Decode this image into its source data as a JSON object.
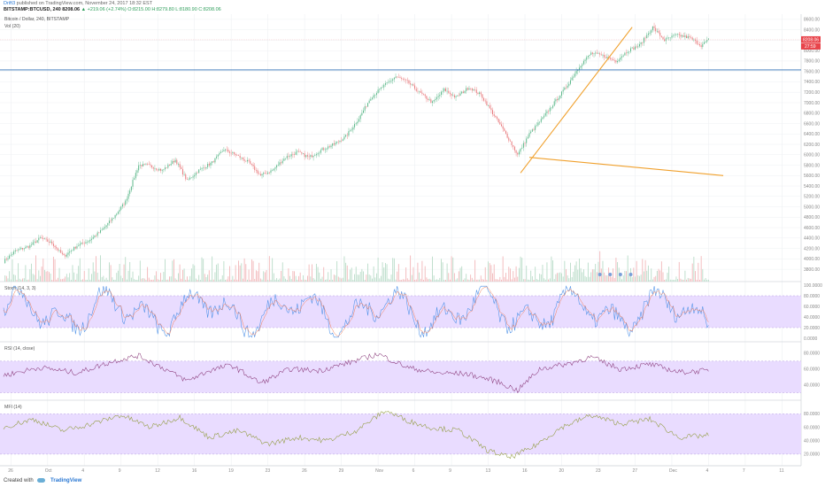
{
  "header": {
    "author": "Drift3",
    "published": "published on TradingView.com, November 24, 2017 18:32 EST",
    "symbol": "BITSTAMP:BTCUSD, 240",
    "last": "8208.06",
    "change": "▲ +219.06 (+2.74%)",
    "ohlc": "O:8215.00 H:8279.80 L:8180.90 C:8208.06"
  },
  "footer": {
    "created_with": "Created with",
    "brand": "TradingView"
  },
  "colors": {
    "up": "#5cb88a",
    "down": "#e8787b",
    "vol_up": "#b9dcc8",
    "vol_down": "#f2b7b9",
    "hline": "#2f6fb5",
    "trend_orange": "#f0a02c",
    "trend_blue": "#3d6fd1",
    "band": "#e9dcff",
    "grid": "#eef0f3",
    "axis_text": "#888888"
  },
  "chart_data": [
    {
      "type": "candlestick",
      "title": "Bitcoin / Dollar, 240, BITSTAMP",
      "subtitle": "Vol (20)",
      "y_tick_labels": [
        "8600.00",
        "8400.00",
        "8200.00",
        "8000.00",
        "7800.00",
        "7600.00",
        "7400.00",
        "7200.00",
        "7000.00",
        "6800.00",
        "6600.00",
        "6400.00",
        "6200.00",
        "6000.00",
        "5800.00",
        "5600.00",
        "5400.00",
        "5200.00",
        "5000.00",
        "4800.00",
        "4600.00",
        "4400.00",
        "4200.00",
        "4000.00",
        "3800.00"
      ],
      "ylim": [
        3700,
        8700
      ],
      "last_price_label": "8208.06",
      "countdown_label": "27:59",
      "horizontal_line": 7630,
      "close_anchors": [
        {
          "x": 0,
          "y": 3950
        },
        {
          "x": 8,
          "y": 4150
        },
        {
          "x": 18,
          "y": 4250
        },
        {
          "x": 25,
          "y": 4400
        },
        {
          "x": 33,
          "y": 4300
        },
        {
          "x": 41,
          "y": 4050
        },
        {
          "x": 50,
          "y": 4250
        },
        {
          "x": 58,
          "y": 4350
        },
        {
          "x": 67,
          "y": 4550
        },
        {
          "x": 75,
          "y": 4800
        },
        {
          "x": 83,
          "y": 5100
        },
        {
          "x": 92,
          "y": 5800
        },
        {
          "x": 98,
          "y": 5800
        },
        {
          "x": 108,
          "y": 5700
        },
        {
          "x": 117,
          "y": 5900
        },
        {
          "x": 125,
          "y": 5500
        },
        {
          "x": 133,
          "y": 5700
        },
        {
          "x": 142,
          "y": 5850
        },
        {
          "x": 150,
          "y": 6100
        },
        {
          "x": 158,
          "y": 6000
        },
        {
          "x": 167,
          "y": 5850
        },
        {
          "x": 175,
          "y": 5600
        },
        {
          "x": 183,
          "y": 5700
        },
        {
          "x": 192,
          "y": 5950
        },
        {
          "x": 200,
          "y": 6050
        },
        {
          "x": 208,
          "y": 5950
        },
        {
          "x": 217,
          "y": 6100
        },
        {
          "x": 225,
          "y": 6200
        },
        {
          "x": 233,
          "y": 6350
        },
        {
          "x": 242,
          "y": 6700
        },
        {
          "x": 250,
          "y": 7100
        },
        {
          "x": 258,
          "y": 7300
        },
        {
          "x": 267,
          "y": 7500
        },
        {
          "x": 275,
          "y": 7400
        },
        {
          "x": 283,
          "y": 7200
        },
        {
          "x": 292,
          "y": 7000
        },
        {
          "x": 300,
          "y": 7250
        },
        {
          "x": 308,
          "y": 7100
        },
        {
          "x": 317,
          "y": 7300
        },
        {
          "x": 325,
          "y": 7150
        },
        {
          "x": 333,
          "y": 6800
        },
        {
          "x": 342,
          "y": 6400
        },
        {
          "x": 350,
          "y": 6000
        },
        {
          "x": 358,
          "y": 6400
        },
        {
          "x": 367,
          "y": 6700
        },
        {
          "x": 375,
          "y": 7000
        },
        {
          "x": 383,
          "y": 7300
        },
        {
          "x": 392,
          "y": 7700
        },
        {
          "x": 400,
          "y": 7950
        },
        {
          "x": 408,
          "y": 7900
        },
        {
          "x": 417,
          "y": 7800
        },
        {
          "x": 425,
          "y": 8000
        },
        {
          "x": 433,
          "y": 8100
        },
        {
          "x": 442,
          "y": 8450
        },
        {
          "x": 450,
          "y": 8200
        },
        {
          "x": 458,
          "y": 8300
        },
        {
          "x": 467,
          "y": 8250
        },
        {
          "x": 475,
          "y": 8100
        },
        {
          "x": 480,
          "y": 8208
        }
      ],
      "trendlines": [
        {
          "from": {
            "x": 352,
            "y": 5650
          },
          "to": {
            "x": 428,
            "y": 8450
          },
          "color": "orange"
        },
        {
          "from": {
            "x": 358,
            "y": 5950
          },
          "to": {
            "x": 490,
            "y": 5600
          },
          "color": "orange"
        }
      ]
    },
    {
      "type": "line",
      "title": "Stoch (14, 3, 3)",
      "y_tick_labels": [
        "100.0000",
        "80.0000",
        "60.0000",
        "40.0000",
        "20.0000",
        "0.0000"
      ],
      "ylim": [
        0,
        100
      ],
      "band": [
        20,
        80
      ],
      "series": [
        {
          "name": "%K"
        },
        {
          "name": "%D"
        }
      ]
    },
    {
      "type": "line",
      "title": "RSI (14, close)",
      "y_tick_labels": [
        "80.0000",
        "60.0000",
        "40.0000"
      ],
      "ylim": [
        25,
        90
      ],
      "band": [
        30,
        70
      ],
      "anchors": [
        {
          "x": 0,
          "y": 52
        },
        {
          "x": 25,
          "y": 62
        },
        {
          "x": 50,
          "y": 55
        },
        {
          "x": 75,
          "y": 70
        },
        {
          "x": 92,
          "y": 77
        },
        {
          "x": 110,
          "y": 60
        },
        {
          "x": 125,
          "y": 45
        },
        {
          "x": 140,
          "y": 58
        },
        {
          "x": 155,
          "y": 65
        },
        {
          "x": 175,
          "y": 42
        },
        {
          "x": 195,
          "y": 60
        },
        {
          "x": 215,
          "y": 58
        },
        {
          "x": 235,
          "y": 68
        },
        {
          "x": 255,
          "y": 79
        },
        {
          "x": 275,
          "y": 62
        },
        {
          "x": 295,
          "y": 55
        },
        {
          "x": 315,
          "y": 54
        },
        {
          "x": 335,
          "y": 45
        },
        {
          "x": 350,
          "y": 33
        },
        {
          "x": 365,
          "y": 60
        },
        {
          "x": 385,
          "y": 67
        },
        {
          "x": 400,
          "y": 75
        },
        {
          "x": 420,
          "y": 60
        },
        {
          "x": 440,
          "y": 66
        },
        {
          "x": 460,
          "y": 56
        },
        {
          "x": 480,
          "y": 58
        }
      ],
      "trendline": {
        "from": {
          "x": 268,
          "y": 82
        },
        "to": {
          "x": 485,
          "y": 67
        },
        "color": "blue"
      }
    },
    {
      "type": "line",
      "title": "MFI (14)",
      "y_tick_labels": [
        "80.0000",
        "60.0000",
        "40.0000",
        "20.0000"
      ],
      "ylim": [
        8,
        95
      ],
      "band": [
        20,
        80
      ],
      "anchors": [
        {
          "x": 0,
          "y": 60
        },
        {
          "x": 20,
          "y": 72
        },
        {
          "x": 40,
          "y": 55
        },
        {
          "x": 60,
          "y": 65
        },
        {
          "x": 80,
          "y": 78
        },
        {
          "x": 100,
          "y": 60
        },
        {
          "x": 120,
          "y": 75
        },
        {
          "x": 140,
          "y": 45
        },
        {
          "x": 160,
          "y": 55
        },
        {
          "x": 180,
          "y": 35
        },
        {
          "x": 200,
          "y": 45
        },
        {
          "x": 220,
          "y": 40
        },
        {
          "x": 240,
          "y": 55
        },
        {
          "x": 260,
          "y": 85
        },
        {
          "x": 275,
          "y": 70
        },
        {
          "x": 290,
          "y": 60
        },
        {
          "x": 310,
          "y": 55
        },
        {
          "x": 330,
          "y": 25
        },
        {
          "x": 345,
          "y": 15
        },
        {
          "x": 360,
          "y": 30
        },
        {
          "x": 380,
          "y": 60
        },
        {
          "x": 400,
          "y": 78
        },
        {
          "x": 420,
          "y": 65
        },
        {
          "x": 440,
          "y": 72
        },
        {
          "x": 460,
          "y": 45
        },
        {
          "x": 480,
          "y": 48
        }
      ],
      "trendline": {
        "from": {
          "x": 262,
          "y": 87
        },
        "to": {
          "x": 485,
          "y": 74
        },
        "color": "orange"
      }
    }
  ],
  "x_axis": {
    "tick_labels": [
      "26",
      "Oct",
      "4",
      "9",
      "12",
      "16",
      "19",
      "23",
      "26",
      "29",
      "Nov",
      "6",
      "9",
      "13",
      "16",
      "20",
      "23",
      "27",
      "Dec",
      "4",
      "7",
      "11"
    ]
  }
}
